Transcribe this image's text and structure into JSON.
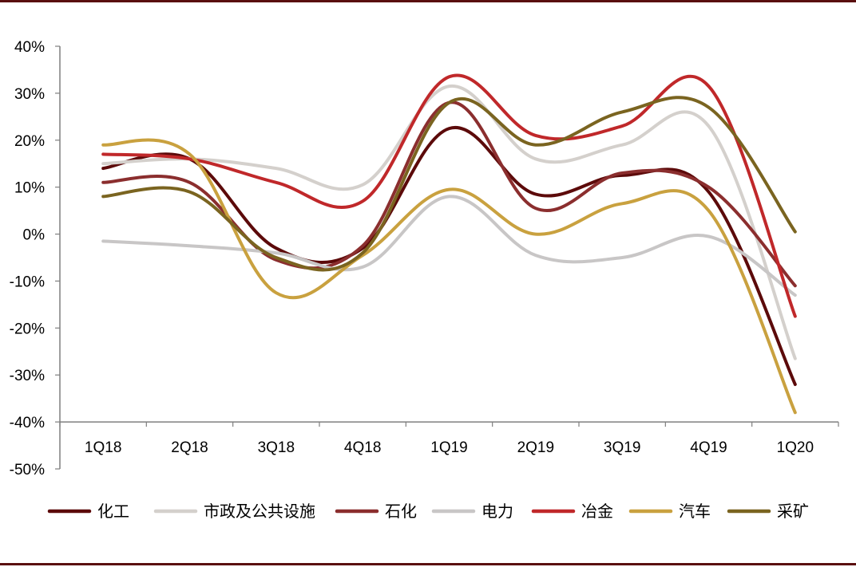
{
  "chart_data": {
    "type": "line",
    "title": "",
    "xlabel": "",
    "ylabel": "",
    "categories": [
      "1Q18",
      "2Q18",
      "3Q18",
      "4Q18",
      "1Q19",
      "2Q19",
      "3Q19",
      "4Q19",
      "1Q20"
    ],
    "y_ticks": [
      "40%",
      "30%",
      "20%",
      "10%",
      "0%",
      "-10%",
      "-20%",
      "-30%",
      "-40%",
      "-50%"
    ],
    "ylim": [
      -50,
      40
    ],
    "grid": false,
    "legend_position": "bottom",
    "series": [
      {
        "name": "化工",
        "color": "#5c0a0a",
        "values": [
          14,
          16,
          -3,
          -3,
          22.5,
          8.5,
          12.5,
          9,
          -32
        ]
      },
      {
        "name": "市政及公共设施",
        "color": "#d4d0cc",
        "values": [
          15,
          16,
          14,
          10.5,
          31.5,
          16,
          19,
          23,
          -26.5
        ]
      },
      {
        "name": "石化",
        "color": "#8b2e2e",
        "values": [
          11,
          11,
          -5.5,
          -2.5,
          28,
          5.5,
          13,
          10,
          -11
        ]
      },
      {
        "name": "电力",
        "color": "#c8c6c6",
        "values": [
          -1.5,
          -2.5,
          -4,
          -7,
          8,
          -4.5,
          -5,
          -0.5,
          -13
        ]
      },
      {
        "name": "冶金",
        "color": "#c0282a",
        "values": [
          17,
          16,
          11,
          7,
          33.5,
          21,
          23,
          31.5,
          -17.5
        ]
      },
      {
        "name": "汽车",
        "color": "#c9a13f",
        "values": [
          19,
          17,
          -12.5,
          -4.5,
          9.5,
          0,
          6.5,
          5,
          -38
        ]
      },
      {
        "name": "采矿",
        "color": "#7a6420",
        "values": [
          8,
          9,
          -5,
          -4,
          28,
          19,
          26,
          27,
          0.5
        ]
      }
    ]
  }
}
